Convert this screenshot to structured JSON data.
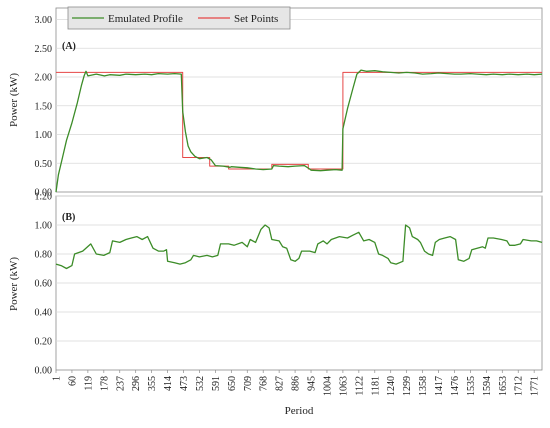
{
  "chart_data": [
    {
      "panel_label": "(A)",
      "type": "line",
      "ylabel": "Power (kW)",
      "xlabel": "",
      "ylim": [
        0,
        3.2
      ],
      "xlim": [
        1,
        1800
      ],
      "yticks": [
        "0.00",
        "0.50",
        "1.00",
        "1.50",
        "2.00",
        "2.50",
        "3.00"
      ],
      "grid": "horizontal",
      "legend": {
        "placement": "top-left",
        "entries": [
          "Emulated Profile",
          "Set Points"
        ]
      },
      "series": [
        {
          "name": "Set Points",
          "color": "#e64646",
          "style": "step",
          "segments": [
            {
              "x_start": 1,
              "x_end": 470,
              "y": 2.08
            },
            {
              "x_start": 470,
              "x_end": 570,
              "y": 0.6
            },
            {
              "x_start": 570,
              "x_end": 640,
              "y": 0.45
            },
            {
              "x_start": 640,
              "x_end": 800,
              "y": 0.4
            },
            {
              "x_start": 800,
              "x_end": 935,
              "y": 0.48
            },
            {
              "x_start": 935,
              "x_end": 1063,
              "y": 0.4
            },
            {
              "x_start": 1063,
              "x_end": 1800,
              "y": 2.08
            }
          ]
        },
        {
          "name": "Emulated Profile",
          "color": "#3c8c28",
          "style": "line",
          "points": [
            [
              1,
              0.0
            ],
            [
              10,
              0.3
            ],
            [
              25,
              0.6
            ],
            [
              40,
              0.9
            ],
            [
              60,
              1.2
            ],
            [
              80,
              1.55
            ],
            [
              95,
              1.85
            ],
            [
              105,
              2.02
            ],
            [
              112,
              2.1
            ],
            [
              119,
              2.02
            ],
            [
              150,
              2.05
            ],
            [
              180,
              2.02
            ],
            [
              200,
              2.04
            ],
            [
              237,
              2.03
            ],
            [
              260,
              2.05
            ],
            [
              296,
              2.04
            ],
            [
              330,
              2.05
            ],
            [
              355,
              2.04
            ],
            [
              380,
              2.06
            ],
            [
              414,
              2.05
            ],
            [
              440,
              2.06
            ],
            [
              465,
              2.05
            ],
            [
              470,
              1.4
            ],
            [
              480,
              1.05
            ],
            [
              490,
              0.8
            ],
            [
              500,
              0.7
            ],
            [
              515,
              0.62
            ],
            [
              532,
              0.58
            ],
            [
              560,
              0.6
            ],
            [
              575,
              0.56
            ],
            [
              591,
              0.46
            ],
            [
              620,
              0.45
            ],
            [
              645,
              0.43
            ],
            [
              650,
              0.44
            ],
            [
              680,
              0.43
            ],
            [
              709,
              0.42
            ],
            [
              740,
              0.4
            ],
            [
              768,
              0.39
            ],
            [
              800,
              0.4
            ],
            [
              806,
              0.46
            ],
            [
              827,
              0.45
            ],
            [
              860,
              0.44
            ],
            [
              886,
              0.45
            ],
            [
              920,
              0.46
            ],
            [
              940,
              0.4
            ],
            [
              945,
              0.38
            ],
            [
              980,
              0.37
            ],
            [
              1004,
              0.38
            ],
            [
              1035,
              0.39
            ],
            [
              1060,
              0.38
            ],
            [
              1063,
              1.1
            ],
            [
              1080,
              1.45
            ],
            [
              1100,
              1.8
            ],
            [
              1115,
              2.05
            ],
            [
              1130,
              2.12
            ],
            [
              1150,
              2.1
            ],
            [
              1181,
              2.11
            ],
            [
              1210,
              2.09
            ],
            [
              1240,
              2.08
            ],
            [
              1270,
              2.07
            ],
            [
              1299,
              2.08
            ],
            [
              1330,
              2.07
            ],
            [
              1358,
              2.05
            ],
            [
              1390,
              2.06
            ],
            [
              1417,
              2.07
            ],
            [
              1450,
              2.06
            ],
            [
              1476,
              2.05
            ],
            [
              1500,
              2.05
            ],
            [
              1535,
              2.06
            ],
            [
              1560,
              2.05
            ],
            [
              1594,
              2.04
            ],
            [
              1620,
              2.05
            ],
            [
              1653,
              2.04
            ],
            [
              1680,
              2.05
            ],
            [
              1712,
              2.04
            ],
            [
              1745,
              2.05
            ],
            [
              1771,
              2.04
            ],
            [
              1800,
              2.05
            ]
          ]
        }
      ]
    },
    {
      "panel_label": "(B)",
      "type": "line",
      "ylabel": "Power (kW)",
      "xlabel": "Period",
      "ylim": [
        0,
        1.2
      ],
      "xlim": [
        1,
        1800
      ],
      "yticks": [
        "0.00",
        "0.20",
        "0.40",
        "0.60",
        "0.80",
        "1.00",
        "1.20"
      ],
      "xticks": [
        "1",
        "60",
        "119",
        "178",
        "237",
        "296",
        "355",
        "414",
        "473",
        "532",
        "591",
        "650",
        "709",
        "768",
        "827",
        "886",
        "945",
        "1004",
        "1063",
        "1122",
        "1181",
        "1240",
        "1299",
        "1358",
        "1417",
        "1476",
        "1535",
        "1594",
        "1653",
        "1712",
        "1771"
      ],
      "grid": "horizontal",
      "series": [
        {
          "color": "#3c8c28",
          "style": "line",
          "points": [
            [
              1,
              0.73
            ],
            [
              20,
              0.72
            ],
            [
              40,
              0.7
            ],
            [
              60,
              0.72
            ],
            [
              70,
              0.8
            ],
            [
              100,
              0.82
            ],
            [
              130,
              0.87
            ],
            [
              150,
              0.8
            ],
            [
              178,
              0.79
            ],
            [
              200,
              0.81
            ],
            [
              210,
              0.89
            ],
            [
              237,
              0.88
            ],
            [
              260,
              0.9
            ],
            [
              280,
              0.91
            ],
            [
              300,
              0.92
            ],
            [
              320,
              0.9
            ],
            [
              340,
              0.92
            ],
            [
              360,
              0.84
            ],
            [
              380,
              0.82
            ],
            [
              400,
              0.82
            ],
            [
              410,
              0.83
            ],
            [
              414,
              0.75
            ],
            [
              440,
              0.74
            ],
            [
              460,
              0.73
            ],
            [
              480,
              0.74
            ],
            [
              500,
              0.76
            ],
            [
              510,
              0.79
            ],
            [
              532,
              0.78
            ],
            [
              560,
              0.79
            ],
            [
              580,
              0.78
            ],
            [
              600,
              0.79
            ],
            [
              610,
              0.87
            ],
            [
              640,
              0.87
            ],
            [
              660,
              0.86
            ],
            [
              690,
              0.88
            ],
            [
              709,
              0.85
            ],
            [
              720,
              0.9
            ],
            [
              740,
              0.88
            ],
            [
              760,
              0.97
            ],
            [
              775,
              1.0
            ],
            [
              790,
              0.98
            ],
            [
              800,
              0.9
            ],
            [
              827,
              0.89
            ],
            [
              840,
              0.85
            ],
            [
              855,
              0.84
            ],
            [
              870,
              0.76
            ],
            [
              886,
              0.75
            ],
            [
              900,
              0.77
            ],
            [
              910,
              0.82
            ],
            [
              940,
              0.82
            ],
            [
              960,
              0.81
            ],
            [
              970,
              0.87
            ],
            [
              990,
              0.89
            ],
            [
              1004,
              0.87
            ],
            [
              1020,
              0.9
            ],
            [
              1050,
              0.92
            ],
            [
              1080,
              0.91
            ],
            [
              1100,
              0.93
            ],
            [
              1122,
              0.95
            ],
            [
              1140,
              0.89
            ],
            [
              1160,
              0.9
            ],
            [
              1181,
              0.88
            ],
            [
              1195,
              0.8
            ],
            [
              1210,
              0.79
            ],
            [
              1230,
              0.77
            ],
            [
              1240,
              0.74
            ],
            [
              1260,
              0.73
            ],
            [
              1285,
              0.75
            ],
            [
              1295,
              1.0
            ],
            [
              1310,
              0.98
            ],
            [
              1320,
              0.92
            ],
            [
              1340,
              0.9
            ],
            [
              1350,
              0.88
            ],
            [
              1365,
              0.82
            ],
            [
              1380,
              0.8
            ],
            [
              1395,
              0.79
            ],
            [
              1405,
              0.88
            ],
            [
              1420,
              0.9
            ],
            [
              1440,
              0.91
            ],
            [
              1460,
              0.92
            ],
            [
              1480,
              0.9
            ],
            [
              1490,
              0.76
            ],
            [
              1510,
              0.75
            ],
            [
              1530,
              0.77
            ],
            [
              1540,
              0.83
            ],
            [
              1560,
              0.84
            ],
            [
              1580,
              0.85
            ],
            [
              1590,
              0.84
            ],
            [
              1600,
              0.91
            ],
            [
              1620,
              0.91
            ],
            [
              1650,
              0.9
            ],
            [
              1670,
              0.89
            ],
            [
              1680,
              0.86
            ],
            [
              1700,
              0.86
            ],
            [
              1720,
              0.87
            ],
            [
              1730,
              0.9
            ],
            [
              1760,
              0.89
            ],
            [
              1780,
              0.89
            ],
            [
              1800,
              0.88
            ]
          ]
        }
      ]
    }
  ]
}
